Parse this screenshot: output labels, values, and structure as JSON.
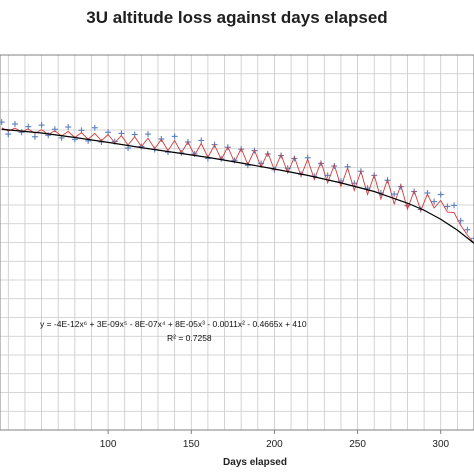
{
  "chart_data": {
    "type": "scatter",
    "title": "3U altitude loss against days elapsed",
    "xlabel": "Days elapsed",
    "ylabel": "",
    "xlim": [
      35,
      320
    ],
    "ylim": [
      0,
      100
    ],
    "x_ticks": [
      100,
      150,
      200,
      250,
      300
    ],
    "grid": true,
    "legend": "none",
    "colors": {
      "observed": "#5b7fbf",
      "oscillation": "#d23a3a",
      "trendline": "#000000",
      "grid": "#c8c8c8"
    },
    "equation": "y = -4E-12x⁶ + 3E-09x⁵ - 8E-07x⁴ + 8E-05x³ - 0.0011x² - 0.4665x + 410",
    "r_squared": "R² = 0.7258",
    "series": [
      {
        "kind": "points",
        "x": [
          36,
          40,
          44,
          48,
          52,
          56,
          60,
          64,
          68,
          72,
          76,
          80,
          84,
          88,
          92,
          96,
          100,
          104,
          108,
          112,
          116,
          120,
          124,
          128,
          132,
          136,
          140,
          144,
          148,
          152,
          156,
          160,
          164,
          168,
          172,
          176,
          180,
          184,
          188,
          192,
          196,
          200,
          204,
          208,
          212,
          216,
          220,
          224,
          228,
          232,
          236,
          240,
          244,
          248,
          252,
          256,
          260,
          264,
          268,
          272,
          276,
          280,
          284,
          288,
          292,
          296,
          300,
          304,
          308,
          312,
          316,
          320
        ],
        "y": [
          82.1,
          78.9,
          81.6,
          79.4,
          80.9,
          78.2,
          81.3,
          78.6,
          80.2,
          77.9,
          80.8,
          77.5,
          79.9,
          77.1,
          80.6,
          76.8,
          79.4,
          76.9,
          79.1,
          75.2,
          78.8,
          75.6,
          78.9,
          74.8,
          77.6,
          74.1,
          78.3,
          73.9,
          76.8,
          73.6,
          77.2,
          72.4,
          76.1,
          72.3,
          75.4,
          71.9,
          74.9,
          70.6,
          74.5,
          71.1,
          73.6,
          69.4,
          73.2,
          69.8,
          72.4,
          68.2,
          72.6,
          67.6,
          71.1,
          67.9,
          70.4,
          66.4,
          70.2,
          65.8,
          69.0,
          64.5,
          67.9,
          63.2,
          66.6,
          62.9,
          64.9,
          59.8,
          63.6,
          58.8,
          63.2,
          60.9,
          62.8,
          59.6,
          59.9,
          55.8,
          53.4,
          51.1
        ]
      },
      {
        "kind": "oscillation",
        "x": [
          36,
          40,
          44,
          48,
          52,
          56,
          60,
          64,
          68,
          72,
          76,
          80,
          84,
          88,
          92,
          96,
          100,
          104,
          108,
          112,
          116,
          120,
          124,
          128,
          132,
          136,
          140,
          144,
          148,
          152,
          156,
          160,
          164,
          168,
          172,
          176,
          180,
          184,
          188,
          192,
          196,
          200,
          204,
          208,
          212,
          216,
          220,
          224,
          228,
          232,
          236,
          240,
          244,
          248,
          252,
          256,
          260,
          264,
          268,
          272,
          276,
          280,
          284,
          288,
          292,
          296,
          300,
          304,
          308,
          312,
          316,
          320
        ],
        "y": [
          80.6,
          79.7,
          80.5,
          79.5,
          80.3,
          79.1,
          80.1,
          78.8,
          79.8,
          78.4,
          79.6,
          78.0,
          79.3,
          77.5,
          79.1,
          77.1,
          78.8,
          76.6,
          78.5,
          76.0,
          78.2,
          75.6,
          77.8,
          75.0,
          77.5,
          74.5,
          77.2,
          73.9,
          76.8,
          73.3,
          76.4,
          72.7,
          76.0,
          72.1,
          75.5,
          71.4,
          75.1,
          70.8,
          74.6,
          70.1,
          74.0,
          69.3,
          73.5,
          68.5,
          72.8,
          67.7,
          72.2,
          66.8,
          71.5,
          65.9,
          70.7,
          64.9,
          69.9,
          63.9,
          69.0,
          62.8,
          68.0,
          61.6,
          66.8,
          60.3,
          65.3,
          58.9,
          63.8,
          58.5,
          62.9,
          59.2,
          61.2,
          58.1,
          58.0,
          54.6,
          52.0,
          49.8
        ]
      },
      {
        "kind": "trendline",
        "x": [
          36,
          60,
          80,
          100,
          120,
          140,
          160,
          180,
          200,
          220,
          240,
          260,
          280,
          290,
          300,
          310,
          320
        ],
        "y": [
          80.2,
          79.2,
          78.0,
          76.7,
          75.3,
          74.0,
          72.7,
          71.2,
          69.6,
          67.9,
          65.9,
          63.6,
          60.5,
          58.6,
          56.2,
          53.3,
          49.8
        ]
      }
    ]
  }
}
